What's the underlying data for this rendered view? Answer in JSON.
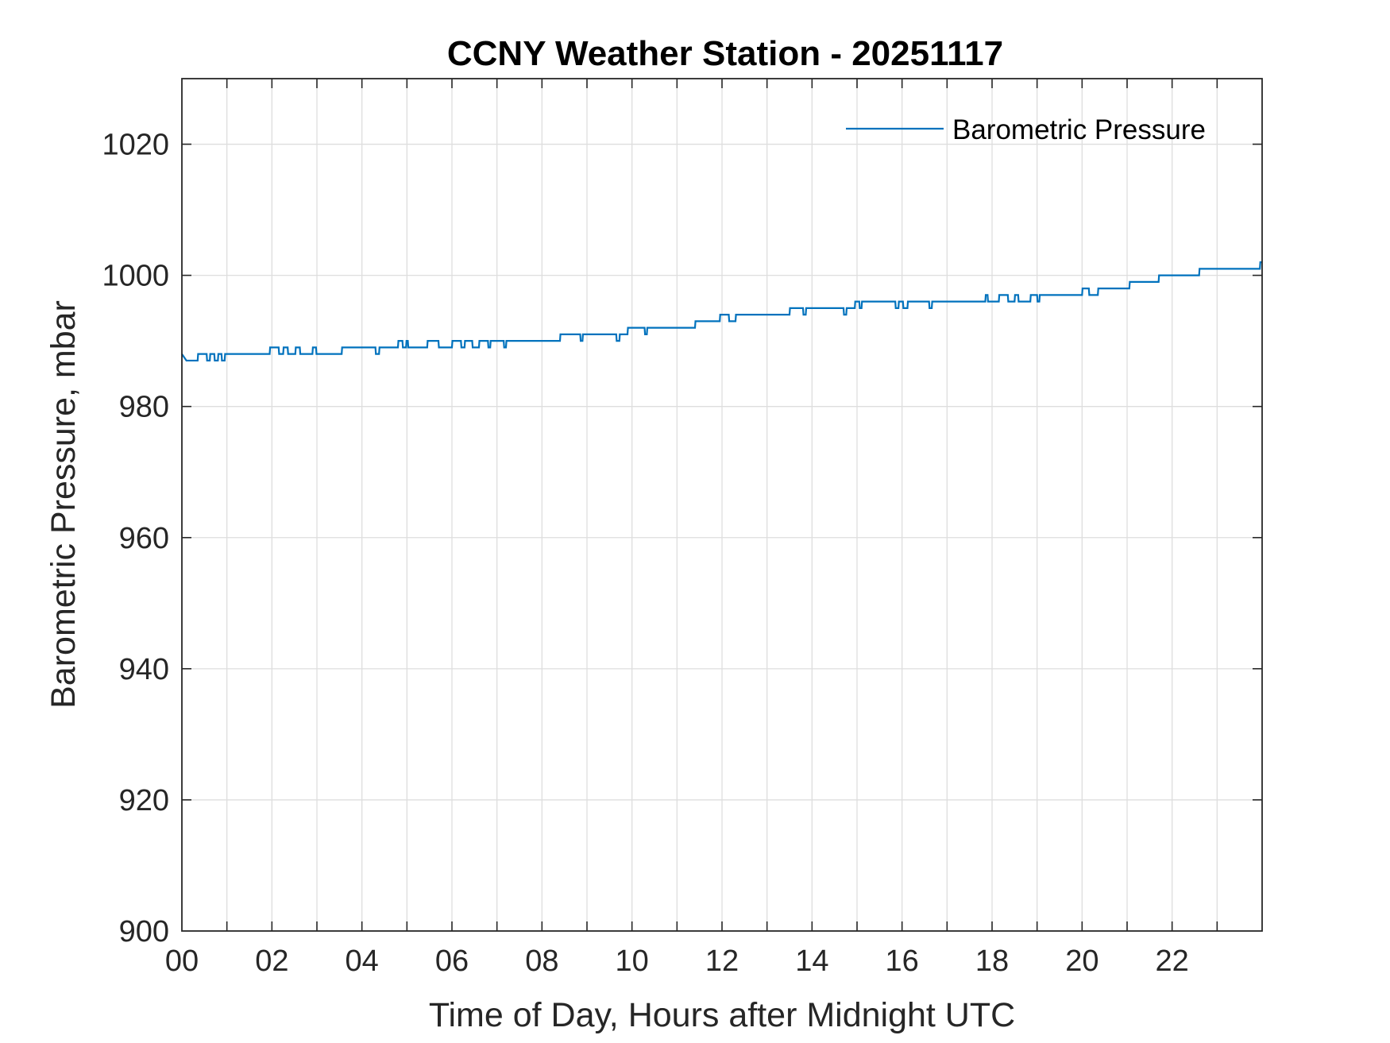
{
  "chart_data": {
    "type": "line",
    "title": "CCNY Weather Station - 20251117",
    "xlabel": "Time of Day, Hours after Midnight UTC",
    "ylabel": "Barometric Pressure, mbar",
    "xlim": [
      0,
      24
    ],
    "ylim": [
      900,
      1030
    ],
    "x_ticks": [
      0,
      2,
      4,
      6,
      8,
      10,
      12,
      14,
      16,
      18,
      20,
      22
    ],
    "x_tick_labels": [
      "00",
      "02",
      "04",
      "06",
      "08",
      "10",
      "12",
      "14",
      "16",
      "18",
      "20",
      "22"
    ],
    "x_minor_grid_step": 1,
    "y_ticks": [
      900,
      920,
      940,
      960,
      980,
      1000,
      1020
    ],
    "y_tick_labels": [
      "900",
      "920",
      "940",
      "960",
      "980",
      "1000",
      "1020"
    ],
    "grid": true,
    "legend_position": "top-right",
    "series": [
      {
        "name": "Barometric Pressure",
        "color": "#0072BD",
        "points": [
          [
            0.0,
            988
          ],
          [
            0.1,
            987
          ],
          [
            0.35,
            987
          ],
          [
            0.36,
            988
          ],
          [
            0.55,
            988
          ],
          [
            0.56,
            987
          ],
          [
            0.62,
            987
          ],
          [
            0.63,
            988
          ],
          [
            0.72,
            988
          ],
          [
            0.73,
            987
          ],
          [
            0.8,
            987
          ],
          [
            0.81,
            988
          ],
          [
            0.88,
            988
          ],
          [
            0.89,
            987
          ],
          [
            0.95,
            987
          ],
          [
            0.96,
            988
          ],
          [
            1.95,
            988
          ],
          [
            1.96,
            989
          ],
          [
            2.15,
            989
          ],
          [
            2.16,
            988
          ],
          [
            2.25,
            988
          ],
          [
            2.26,
            989
          ],
          [
            2.35,
            989
          ],
          [
            2.36,
            988
          ],
          [
            2.52,
            988
          ],
          [
            2.53,
            989
          ],
          [
            2.62,
            989
          ],
          [
            2.63,
            988
          ],
          [
            2.9,
            988
          ],
          [
            2.91,
            989
          ],
          [
            2.98,
            989
          ],
          [
            2.99,
            988
          ],
          [
            3.55,
            988
          ],
          [
            3.56,
            989
          ],
          [
            4.3,
            989
          ],
          [
            4.31,
            988
          ],
          [
            4.38,
            988
          ],
          [
            4.39,
            989
          ],
          [
            4.8,
            989
          ],
          [
            4.81,
            990
          ],
          [
            4.9,
            990
          ],
          [
            4.91,
            989
          ],
          [
            4.98,
            989
          ],
          [
            4.99,
            990
          ],
          [
            5.02,
            990
          ],
          [
            5.03,
            989
          ],
          [
            5.45,
            989
          ],
          [
            5.46,
            990
          ],
          [
            5.7,
            990
          ],
          [
            5.71,
            989
          ],
          [
            6.0,
            989
          ],
          [
            6.01,
            990
          ],
          [
            6.2,
            990
          ],
          [
            6.21,
            989
          ],
          [
            6.28,
            989
          ],
          [
            6.29,
            990
          ],
          [
            6.45,
            990
          ],
          [
            6.46,
            989
          ],
          [
            6.6,
            989
          ],
          [
            6.61,
            990
          ],
          [
            6.8,
            990
          ],
          [
            6.81,
            989
          ],
          [
            6.85,
            989
          ],
          [
            6.86,
            990
          ],
          [
            7.15,
            990
          ],
          [
            7.16,
            989
          ],
          [
            7.2,
            989
          ],
          [
            7.21,
            990
          ],
          [
            8.4,
            990
          ],
          [
            8.41,
            991
          ],
          [
            8.85,
            991
          ],
          [
            8.86,
            990
          ],
          [
            8.9,
            990
          ],
          [
            8.91,
            991
          ],
          [
            9.65,
            991
          ],
          [
            9.66,
            990
          ],
          [
            9.72,
            990
          ],
          [
            9.73,
            991
          ],
          [
            9.9,
            991
          ],
          [
            9.91,
            992
          ],
          [
            10.28,
            992
          ],
          [
            10.29,
            991
          ],
          [
            10.33,
            991
          ],
          [
            10.34,
            992
          ],
          [
            11.4,
            992
          ],
          [
            11.41,
            993
          ],
          [
            11.95,
            993
          ],
          [
            11.96,
            994
          ],
          [
            12.15,
            994
          ],
          [
            12.16,
            993
          ],
          [
            12.3,
            993
          ],
          [
            12.31,
            994
          ],
          [
            13.5,
            994
          ],
          [
            13.51,
            995
          ],
          [
            13.8,
            995
          ],
          [
            13.81,
            994
          ],
          [
            13.86,
            994
          ],
          [
            13.87,
            995
          ],
          [
            14.7,
            995
          ],
          [
            14.71,
            994
          ],
          [
            14.76,
            994
          ],
          [
            14.77,
            995
          ],
          [
            14.95,
            995
          ],
          [
            14.96,
            996
          ],
          [
            15.05,
            996
          ],
          [
            15.06,
            995
          ],
          [
            15.1,
            995
          ],
          [
            15.11,
            996
          ],
          [
            15.85,
            996
          ],
          [
            15.86,
            995
          ],
          [
            15.92,
            995
          ],
          [
            15.93,
            996
          ],
          [
            16.02,
            996
          ],
          [
            16.03,
            995
          ],
          [
            16.12,
            995
          ],
          [
            16.13,
            996
          ],
          [
            16.6,
            996
          ],
          [
            16.61,
            995
          ],
          [
            16.66,
            995
          ],
          [
            16.67,
            996
          ],
          [
            17.85,
            996
          ],
          [
            17.86,
            997
          ],
          [
            17.9,
            997
          ],
          [
            17.91,
            996
          ],
          [
            18.15,
            996
          ],
          [
            18.16,
            997
          ],
          [
            18.35,
            997
          ],
          [
            18.36,
            996
          ],
          [
            18.5,
            996
          ],
          [
            18.51,
            997
          ],
          [
            18.58,
            997
          ],
          [
            18.59,
            996
          ],
          [
            18.85,
            996
          ],
          [
            18.86,
            997
          ],
          [
            19.0,
            997
          ],
          [
            19.01,
            996
          ],
          [
            19.05,
            996
          ],
          [
            19.06,
            997
          ],
          [
            20.0,
            997
          ],
          [
            20.01,
            998
          ],
          [
            20.15,
            998
          ],
          [
            20.16,
            997
          ],
          [
            20.35,
            997
          ],
          [
            20.36,
            998
          ],
          [
            21.05,
            998
          ],
          [
            21.06,
            999
          ],
          [
            21.7,
            999
          ],
          [
            21.71,
            1000
          ],
          [
            22.6,
            1000
          ],
          [
            22.61,
            1001
          ],
          [
            23.95,
            1001
          ],
          [
            23.96,
            1002
          ],
          [
            24.0,
            1002
          ]
        ]
      }
    ]
  }
}
